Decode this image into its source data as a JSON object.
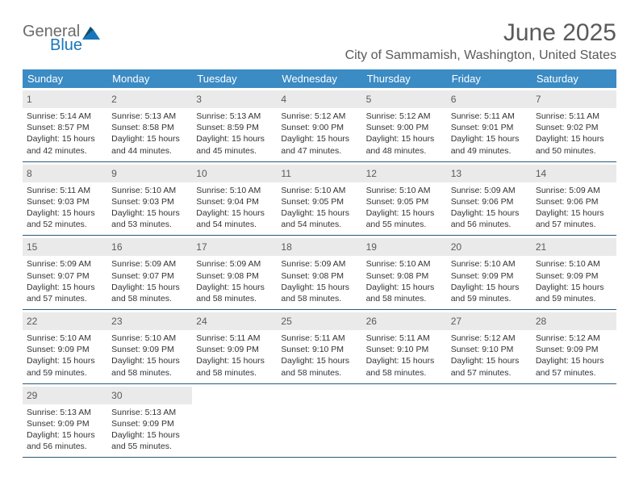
{
  "logo": {
    "word1": "General",
    "word2": "Blue",
    "arrow_color": "#1976b8",
    "text1_color": "#6b6b6b",
    "text2_color": "#1976b8"
  },
  "title": "June 2025",
  "location": "City of Sammamish, Washington, United States",
  "colors": {
    "header_bar": "#3b8bc4",
    "header_text": "#ffffff",
    "daynum_bg": "#eaeaea",
    "week_border": "#2c5a7a",
    "body_text": "#333333",
    "title_text": "#5a5a5a"
  },
  "fonts": {
    "title_size": 30,
    "location_size": 16,
    "dow_size": 13,
    "daynum_size": 12,
    "info_size": 10.5
  },
  "dow": [
    "Sunday",
    "Monday",
    "Tuesday",
    "Wednesday",
    "Thursday",
    "Friday",
    "Saturday"
  ],
  "weeks": [
    [
      {
        "num": "1",
        "sunrise": "Sunrise: 5:14 AM",
        "sunset": "Sunset: 8:57 PM",
        "day1": "Daylight: 15 hours",
        "day2": "and 42 minutes."
      },
      {
        "num": "2",
        "sunrise": "Sunrise: 5:13 AM",
        "sunset": "Sunset: 8:58 PM",
        "day1": "Daylight: 15 hours",
        "day2": "and 44 minutes."
      },
      {
        "num": "3",
        "sunrise": "Sunrise: 5:13 AM",
        "sunset": "Sunset: 8:59 PM",
        "day1": "Daylight: 15 hours",
        "day2": "and 45 minutes."
      },
      {
        "num": "4",
        "sunrise": "Sunrise: 5:12 AM",
        "sunset": "Sunset: 9:00 PM",
        "day1": "Daylight: 15 hours",
        "day2": "and 47 minutes."
      },
      {
        "num": "5",
        "sunrise": "Sunrise: 5:12 AM",
        "sunset": "Sunset: 9:00 PM",
        "day1": "Daylight: 15 hours",
        "day2": "and 48 minutes."
      },
      {
        "num": "6",
        "sunrise": "Sunrise: 5:11 AM",
        "sunset": "Sunset: 9:01 PM",
        "day1": "Daylight: 15 hours",
        "day2": "and 49 minutes."
      },
      {
        "num": "7",
        "sunrise": "Sunrise: 5:11 AM",
        "sunset": "Sunset: 9:02 PM",
        "day1": "Daylight: 15 hours",
        "day2": "and 50 minutes."
      }
    ],
    [
      {
        "num": "8",
        "sunrise": "Sunrise: 5:11 AM",
        "sunset": "Sunset: 9:03 PM",
        "day1": "Daylight: 15 hours",
        "day2": "and 52 minutes."
      },
      {
        "num": "9",
        "sunrise": "Sunrise: 5:10 AM",
        "sunset": "Sunset: 9:03 PM",
        "day1": "Daylight: 15 hours",
        "day2": "and 53 minutes."
      },
      {
        "num": "10",
        "sunrise": "Sunrise: 5:10 AM",
        "sunset": "Sunset: 9:04 PM",
        "day1": "Daylight: 15 hours",
        "day2": "and 54 minutes."
      },
      {
        "num": "11",
        "sunrise": "Sunrise: 5:10 AM",
        "sunset": "Sunset: 9:05 PM",
        "day1": "Daylight: 15 hours",
        "day2": "and 54 minutes."
      },
      {
        "num": "12",
        "sunrise": "Sunrise: 5:10 AM",
        "sunset": "Sunset: 9:05 PM",
        "day1": "Daylight: 15 hours",
        "day2": "and 55 minutes."
      },
      {
        "num": "13",
        "sunrise": "Sunrise: 5:09 AM",
        "sunset": "Sunset: 9:06 PM",
        "day1": "Daylight: 15 hours",
        "day2": "and 56 minutes."
      },
      {
        "num": "14",
        "sunrise": "Sunrise: 5:09 AM",
        "sunset": "Sunset: 9:06 PM",
        "day1": "Daylight: 15 hours",
        "day2": "and 57 minutes."
      }
    ],
    [
      {
        "num": "15",
        "sunrise": "Sunrise: 5:09 AM",
        "sunset": "Sunset: 9:07 PM",
        "day1": "Daylight: 15 hours",
        "day2": "and 57 minutes."
      },
      {
        "num": "16",
        "sunrise": "Sunrise: 5:09 AM",
        "sunset": "Sunset: 9:07 PM",
        "day1": "Daylight: 15 hours",
        "day2": "and 58 minutes."
      },
      {
        "num": "17",
        "sunrise": "Sunrise: 5:09 AM",
        "sunset": "Sunset: 9:08 PM",
        "day1": "Daylight: 15 hours",
        "day2": "and 58 minutes."
      },
      {
        "num": "18",
        "sunrise": "Sunrise: 5:09 AM",
        "sunset": "Sunset: 9:08 PM",
        "day1": "Daylight: 15 hours",
        "day2": "and 58 minutes."
      },
      {
        "num": "19",
        "sunrise": "Sunrise: 5:10 AM",
        "sunset": "Sunset: 9:08 PM",
        "day1": "Daylight: 15 hours",
        "day2": "and 58 minutes."
      },
      {
        "num": "20",
        "sunrise": "Sunrise: 5:10 AM",
        "sunset": "Sunset: 9:09 PM",
        "day1": "Daylight: 15 hours",
        "day2": "and 59 minutes."
      },
      {
        "num": "21",
        "sunrise": "Sunrise: 5:10 AM",
        "sunset": "Sunset: 9:09 PM",
        "day1": "Daylight: 15 hours",
        "day2": "and 59 minutes."
      }
    ],
    [
      {
        "num": "22",
        "sunrise": "Sunrise: 5:10 AM",
        "sunset": "Sunset: 9:09 PM",
        "day1": "Daylight: 15 hours",
        "day2": "and 59 minutes."
      },
      {
        "num": "23",
        "sunrise": "Sunrise: 5:10 AM",
        "sunset": "Sunset: 9:09 PM",
        "day1": "Daylight: 15 hours",
        "day2": "and 58 minutes."
      },
      {
        "num": "24",
        "sunrise": "Sunrise: 5:11 AM",
        "sunset": "Sunset: 9:09 PM",
        "day1": "Daylight: 15 hours",
        "day2": "and 58 minutes."
      },
      {
        "num": "25",
        "sunrise": "Sunrise: 5:11 AM",
        "sunset": "Sunset: 9:10 PM",
        "day1": "Daylight: 15 hours",
        "day2": "and 58 minutes."
      },
      {
        "num": "26",
        "sunrise": "Sunrise: 5:11 AM",
        "sunset": "Sunset: 9:10 PM",
        "day1": "Daylight: 15 hours",
        "day2": "and 58 minutes."
      },
      {
        "num": "27",
        "sunrise": "Sunrise: 5:12 AM",
        "sunset": "Sunset: 9:10 PM",
        "day1": "Daylight: 15 hours",
        "day2": "and 57 minutes."
      },
      {
        "num": "28",
        "sunrise": "Sunrise: 5:12 AM",
        "sunset": "Sunset: 9:09 PM",
        "day1": "Daylight: 15 hours",
        "day2": "and 57 minutes."
      }
    ],
    [
      {
        "num": "29",
        "sunrise": "Sunrise: 5:13 AM",
        "sunset": "Sunset: 9:09 PM",
        "day1": "Daylight: 15 hours",
        "day2": "and 56 minutes."
      },
      {
        "num": "30",
        "sunrise": "Sunrise: 5:13 AM",
        "sunset": "Sunset: 9:09 PM",
        "day1": "Daylight: 15 hours",
        "day2": "and 55 minutes."
      },
      {
        "empty": true
      },
      {
        "empty": true
      },
      {
        "empty": true
      },
      {
        "empty": true
      },
      {
        "empty": true
      }
    ]
  ]
}
